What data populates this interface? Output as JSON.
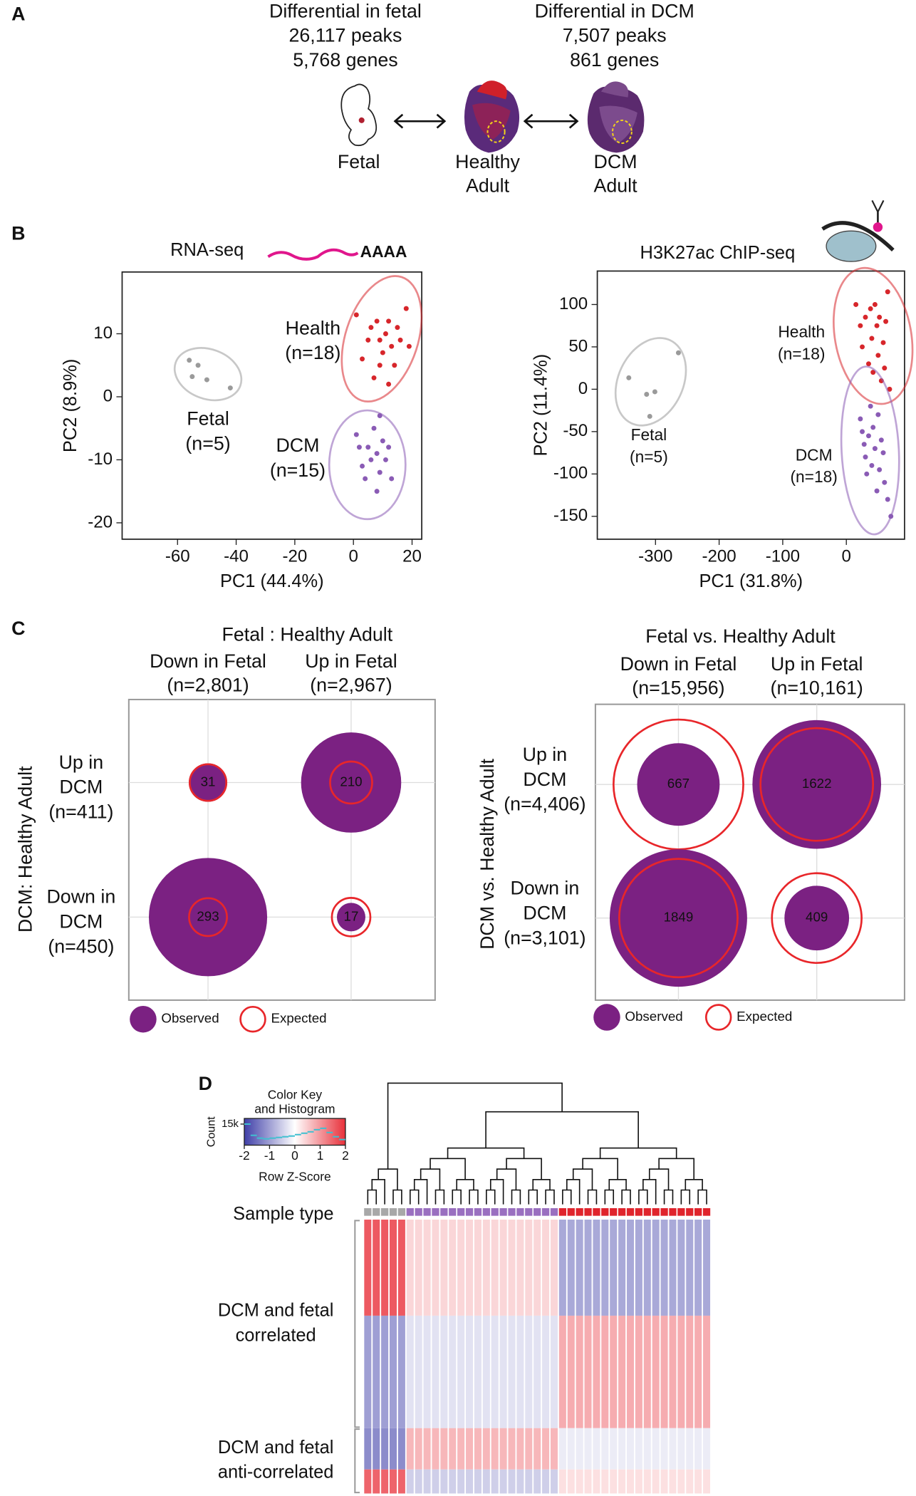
{
  "panel_labels": [
    "A",
    "B",
    "C",
    "D"
  ],
  "overview": {
    "fetal_diff": [
      "Differential in fetal",
      "26,117 peaks",
      "5,768 genes"
    ],
    "dcm_diff": [
      "Differential in DCM",
      "7,507 peaks",
      "861 genes"
    ],
    "stages": [
      [
        "Fetal"
      ],
      [
        "Healthy",
        "Adult"
      ],
      [
        "DCM",
        "Adult"
      ]
    ],
    "fetal_color": "#8c8c8c",
    "dcm_color": "#8a4fb0"
  },
  "chart_data": [
    {
      "type": "scatter",
      "title": "RNA-seq",
      "title_tag": "AAAA",
      "tag_color": "#e0168c",
      "x_label": "PC1 (44.4%)",
      "y_label": "PC2 (8.9%)",
      "xlim": [
        -78.9,
        23.3
      ],
      "ylim": [
        -22.6,
        19.8
      ],
      "xticks": [
        -60,
        -40,
        -20,
        0,
        20
      ],
      "yticks": [
        -20,
        -10,
        0,
        10
      ],
      "series": [
        {
          "name": "Fetal",
          "count_label": "(n=5)",
          "color": "#9a9a9a",
          "x": [
            -56,
            -53,
            -50,
            -42,
            -55
          ],
          "y": [
            5.8,
            5,
            2.7,
            1.4,
            3.2
          ]
        },
        {
          "name": "Health",
          "count_label": "(n=18)",
          "color": "#d7262b",
          "x": [
            1,
            3,
            5,
            6,
            7,
            8,
            9,
            9,
            10,
            11,
            12,
            12,
            13,
            14,
            15,
            16,
            18,
            19
          ],
          "y": [
            13,
            6,
            9,
            11,
            3,
            12,
            5,
            9,
            7,
            10,
            12,
            2,
            8,
            5,
            11,
            9,
            14,
            8
          ]
        },
        {
          "name": "DCM",
          "count_label": "(n=15)",
          "color": "#8a5bb5",
          "x": [
            1,
            2,
            3,
            4,
            5,
            6,
            7,
            8,
            8,
            9,
            10,
            11,
            12,
            13,
            9
          ],
          "y": [
            -6,
            -8,
            -11,
            -13,
            -8,
            -10,
            -5,
            -9,
            -15,
            -12,
            -7,
            -10,
            -8,
            -13,
            -3
          ]
        }
      ]
    },
    {
      "type": "scatter",
      "title": "H3K27ac ChIP-seq",
      "x_label": "PC1 (31.8%)",
      "y_label": "PC2 (11.4%)",
      "xlim": [
        -391.5,
        91.5
      ],
      "ylim": [
        -177,
        139.5
      ],
      "xticks": [
        -300,
        -200,
        -100,
        0
      ],
      "yticks": [
        -150,
        -100,
        -50,
        0,
        50,
        100
      ],
      "series": [
        {
          "name": "Fetal",
          "count_label": "(n=5)",
          "color": "#9a9a9a",
          "x": [
            -342,
            -264,
            -301,
            -314,
            -309
          ],
          "y": [
            13.5,
            43,
            -3,
            -6,
            -32
          ]
        },
        {
          "name": "Health",
          "count_label": "(n=18)",
          "color": "#d7262b",
          "x": [
            15,
            22,
            25,
            30,
            35,
            38,
            40,
            42,
            45,
            48,
            50,
            52,
            55,
            58,
            60,
            62,
            65,
            68
          ],
          "y": [
            100,
            75,
            50,
            85,
            30,
            95,
            60,
            20,
            100,
            75,
            40,
            85,
            10,
            55,
            25,
            80,
            115,
            0
          ]
        },
        {
          "name": "DCM",
          "count_label": "(n=18)",
          "color": "#8a5bb5",
          "x": [
            22,
            25,
            28,
            30,
            32,
            35,
            38,
            40,
            42,
            45,
            48,
            50,
            52,
            55,
            58,
            60,
            65,
            70
          ],
          "y": [
            -35,
            -50,
            -65,
            -80,
            -100,
            -55,
            -20,
            -90,
            -45,
            -70,
            -120,
            -30,
            -95,
            -60,
            -75,
            -110,
            -130,
            -150
          ]
        }
      ]
    },
    {
      "type": "bubble",
      "title": "Fetal : Healthy Adult",
      "y_title": "DCM: Healthy Adult",
      "columns": [
        {
          "label": "Down in Fetal",
          "n": "(n=2,801)"
        },
        {
          "label": "Up in Fetal",
          "n": "(n=2,967)"
        }
      ],
      "rows": [
        {
          "label": [
            "Up in",
            "DCM"
          ],
          "n": "(n=411)"
        },
        {
          "label": [
            "Down in",
            "DCM"
          ],
          "n": "(n=450)"
        }
      ],
      "observed": [
        [
          31,
          210
        ],
        [
          293,
          17
        ]
      ],
      "expected": [
        [
          28,
          37
        ],
        [
          30,
          31
        ]
      ],
      "observed_color": "#7b2182",
      "expected_color": "#e8262a",
      "legend": [
        "Observed",
        "Expected"
      ]
    },
    {
      "type": "bubble",
      "title": "Fetal vs. Healthy Adult",
      "y_title": "DCM vs. Healthy Adult",
      "columns": [
        {
          "label": "Down in Fetal",
          "n": "(n=15,956)"
        },
        {
          "label": "Up in Fetal",
          "n": "(n=10,161)"
        }
      ],
      "rows": [
        {
          "label": [
            "Up in",
            "DCM"
          ],
          "n": "(n=4,406)"
        },
        {
          "label": [
            "Down in",
            "DCM"
          ],
          "n": "(n=3,101)"
        }
      ],
      "observed": [
        [
          667,
          1622
        ],
        [
          1849,
          409
        ]
      ],
      "expected": [
        [
          1650,
          1242
        ],
        [
          1372,
          788
        ]
      ],
      "observed_color": "#7b2182",
      "expected_color": "#e8262a",
      "legend": [
        "Observed",
        "Expected"
      ]
    },
    {
      "type": "heatmap",
      "key_title": [
        "Color Key",
        "and Histogram"
      ],
      "key_x_label": "Row Z-Score",
      "key_y_label": "Count",
      "key_xlim": [
        -2,
        2
      ],
      "key_xticks": [
        -2,
        -1,
        0,
        1,
        2
      ],
      "key_ylim": [
        0,
        19000
      ],
      "key_yticks": [
        {
          "value": 15000,
          "label": "15k"
        }
      ],
      "histogram": {
        "color": "#3fbfd0",
        "bins": [
          -2,
          -1.75,
          -1.5,
          -1.25,
          -1,
          -0.75,
          -0.5,
          -0.25,
          0,
          0.25,
          0.5,
          0.75,
          1,
          1.25,
          1.5,
          1.75,
          2
        ],
        "counts": [
          15000,
          7000,
          5000,
          4500,
          5000,
          5500,
          6000,
          6500,
          7500,
          8500,
          9500,
          11000,
          12000,
          9000,
          6000,
          4000
        ]
      },
      "colors": [
        "#3f3fa8",
        "#ffffff",
        "#e8303a"
      ],
      "sample_label": "Sample type",
      "sample_groups": [
        {
          "color": "#a8a8a8",
          "count": 5
        },
        {
          "color": "#9a6fc0",
          "count": 18
        },
        {
          "color": "#e0242c",
          "count": 18
        }
      ],
      "row_groups": [
        {
          "label": [
            "DCM and fetal",
            "correlated"
          ],
          "blocks": [
            {
              "rows": 100,
              "z": [
                1.6,
                0.4,
                -0.9
              ]
            },
            {
              "rows": 117,
              "z": [
                -1.0,
                -0.3,
                0.8
              ]
            }
          ]
        },
        {
          "label": [
            "DCM and fetal",
            "anti-correlated"
          ],
          "blocks": [
            {
              "rows": 43,
              "z": [
                -1.2,
                0.7,
                -0.2
              ]
            },
            {
              "rows": 25,
              "z": [
                1.5,
                -0.5,
                0.3
              ]
            }
          ]
        }
      ]
    }
  ]
}
